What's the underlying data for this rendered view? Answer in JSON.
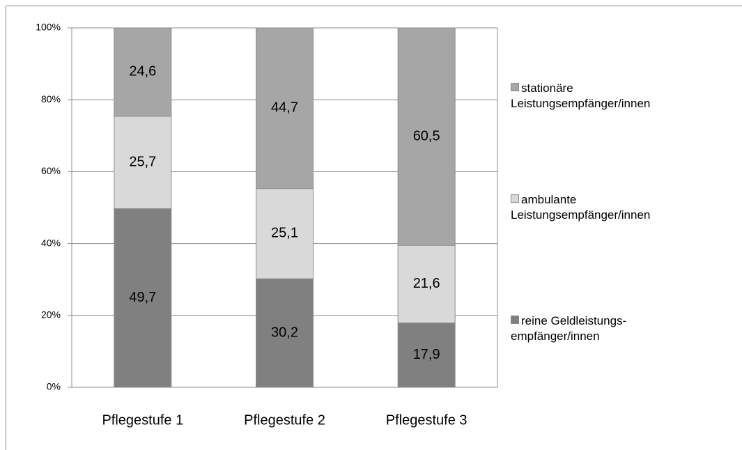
{
  "chart_data": {
    "type": "stacked_bar_100",
    "categories": [
      "Pflegestufe 1",
      "Pflegestufe 2",
      "Pflegestufe 3"
    ],
    "series": [
      {
        "name": "reine Geldleistungs-empfänger/innen",
        "color": "#808080",
        "values": [
          49.7,
          30.2,
          17.9
        ],
        "value_labels": [
          "49,7",
          "30,2",
          "17,9"
        ]
      },
      {
        "name": "ambulante Leistungsempfänger/innen",
        "color": "#d9d9d9",
        "values": [
          25.7,
          25.1,
          21.6
        ],
        "value_labels": [
          "25,7",
          "25,1",
          "21,6"
        ]
      },
      {
        "name": "stationäre Leistungsempfänger/innen",
        "color": "#a6a6a6",
        "values": [
          24.6,
          44.7,
          60.5
        ],
        "value_labels": [
          "24,6",
          "44,7",
          "60,5"
        ]
      }
    ],
    "ylim": [
      0,
      100
    ],
    "yticks": [
      {
        "value": 0,
        "label": "0%"
      },
      {
        "value": 20,
        "label": "20%"
      },
      {
        "value": 40,
        "label": "40%"
      },
      {
        "value": 60,
        "label": "60%"
      },
      {
        "value": 80,
        "label": "80%"
      },
      {
        "value": 100,
        "label": "100%"
      }
    ],
    "grid": true,
    "legend": "right"
  }
}
